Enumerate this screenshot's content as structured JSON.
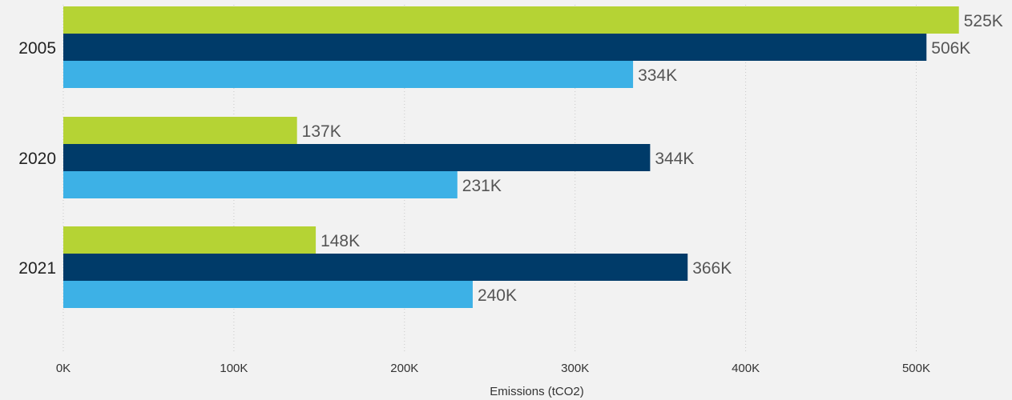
{
  "chart_data": {
    "type": "bar",
    "orientation": "horizontal",
    "categories": [
      "2005",
      "2020",
      "2021"
    ],
    "series": [
      {
        "values": [
          525000,
          137000,
          148000
        ],
        "labels": [
          "525K",
          "137K",
          "148K"
        ],
        "color": "#b5d334"
      },
      {
        "values": [
          506000,
          344000,
          366000
        ],
        "labels": [
          "506K",
          "344K",
          "366K"
        ],
        "color": "#003b69"
      },
      {
        "values": [
          334000,
          231000,
          240000
        ],
        "labels": [
          "334K",
          "231K",
          "240K"
        ],
        "color": "#3db1e6"
      }
    ],
    "xlabel": "Emissions (tCO2)",
    "xlim": [
      0,
      500000
    ],
    "x_ticks": [
      0,
      100000,
      200000,
      300000,
      400000,
      500000
    ],
    "x_tick_labels": [
      "0K",
      "100K",
      "200K",
      "300K",
      "400K",
      "500K"
    ],
    "grid": "vertical dotted",
    "background": "#f2f2f2"
  }
}
